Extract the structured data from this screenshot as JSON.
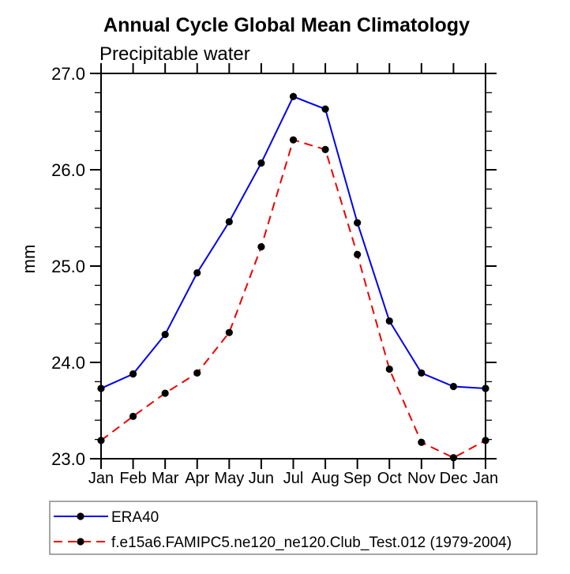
{
  "chart_data": {
    "type": "line",
    "title": "Annual Cycle Global Mean Climatology",
    "subtitle": "Precipitable water",
    "ylabel": "mm",
    "xlabel": "",
    "x_labels": [
      "Jan",
      "Feb",
      "Mar",
      "Apr",
      "May",
      "Jun",
      "Jul",
      "Aug",
      "Sep",
      "Oct",
      "Nov",
      "Dec",
      "Jan"
    ],
    "ylim": [
      23.0,
      27.0
    ],
    "y_major_ticks": [
      23.0,
      24.0,
      25.0,
      26.0,
      27.0
    ],
    "y_tick_labels": [
      "23.0",
      "24.0",
      "25.0",
      "26.0",
      "27.0"
    ],
    "y_minor_step": 0.2,
    "grid": false,
    "legend_position": "bottom-left-box",
    "series": [
      {
        "name": "ERA40",
        "color": "#0000ee",
        "line_style": "solid",
        "marker_shape": "circle",
        "marker_color": "#000000",
        "values": [
          23.73,
          23.88,
          24.29,
          24.93,
          25.46,
          26.07,
          26.76,
          26.63,
          25.45,
          24.43,
          23.89,
          23.75,
          23.73
        ]
      },
      {
        "name": "f.e15a6.FAMIPC5.ne120_ne120.Club_Test.012 (1979-2004)",
        "color": "#ee0000",
        "line_style": "dashed",
        "marker_shape": "circle",
        "marker_color": "#000000",
        "values": [
          23.19,
          23.44,
          23.68,
          23.89,
          24.31,
          25.2,
          26.31,
          26.21,
          25.12,
          23.93,
          23.17,
          23.01,
          23.19
        ]
      }
    ],
    "frame_color": "#000000",
    "legend_border_color": "#888888"
  }
}
